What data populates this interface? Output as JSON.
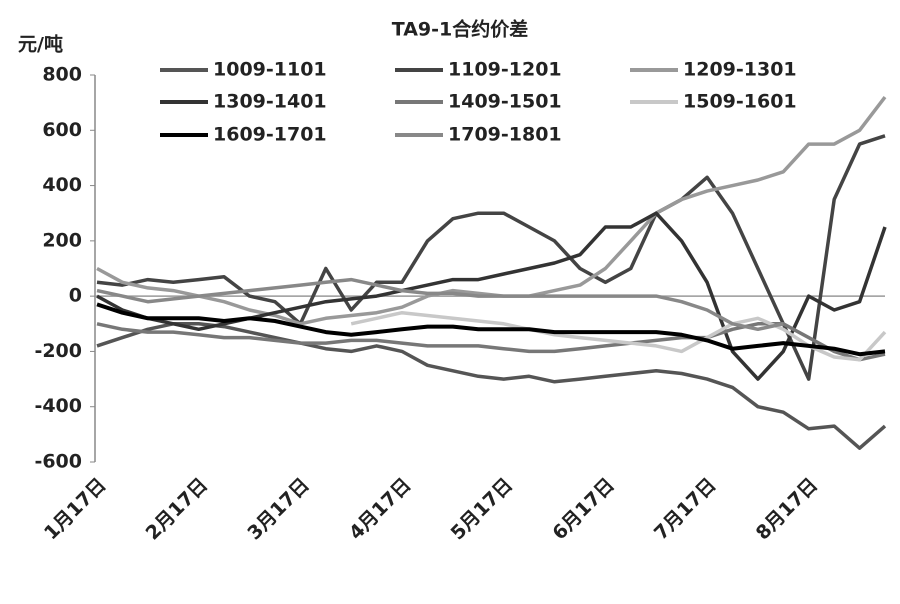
{
  "chart_data": {
    "type": "line",
    "title": "TA9-1合约价差",
    "y_label": "元/吨",
    "categories": [
      "1月17日",
      null,
      null,
      null,
      "2月17日",
      null,
      null,
      null,
      "3月17日",
      null,
      null,
      null,
      "4月17日",
      null,
      null,
      null,
      "5月17日",
      null,
      null,
      null,
      "6月17日",
      null,
      null,
      null,
      "7月17日",
      null,
      null,
      null,
      "8月17日",
      null,
      null,
      null
    ],
    "ylim": [
      -600,
      800
    ],
    "yticks": [
      -600,
      -400,
      -200,
      0,
      200,
      400,
      600,
      800
    ],
    "series": [
      {
        "name": "1009-1101",
        "color": "#555555",
        "values": [
          -180,
          -150,
          -120,
          -100,
          -100,
          -110,
          -130,
          -150,
          -170,
          -190,
          -200,
          -180,
          -200,
          -250,
          -270,
          -290,
          -300,
          -290,
          -310,
          -300,
          -290,
          -280,
          -270,
          -280,
          -300,
          -330,
          -400,
          -420,
          -480,
          -470,
          -550,
          -470
        ]
      },
      {
        "name": "1109-1201",
        "color": "#444444",
        "values": [
          50,
          40,
          60,
          50,
          60,
          70,
          0,
          -20,
          -100,
          100,
          -50,
          50,
          50,
          200,
          280,
          300,
          300,
          250,
          200,
          100,
          50,
          100,
          300,
          350,
          430,
          300,
          100,
          -100,
          -300,
          350,
          550,
          580
        ]
      },
      {
        "name": "1209-1301",
        "color": "#999999",
        "values": [
          100,
          50,
          30,
          20,
          0,
          -20,
          -50,
          -70,
          -100,
          -80,
          -70,
          -60,
          -40,
          0,
          20,
          10,
          0,
          0,
          20,
          40,
          100,
          200,
          300,
          350,
          380,
          400,
          420,
          450,
          550,
          550,
          600,
          720
        ]
      },
      {
        "name": "1309-1401",
        "color": "#333333",
        "values": [
          0,
          -50,
          -80,
          -100,
          -120,
          -100,
          -80,
          -60,
          -40,
          -20,
          -10,
          0,
          20,
          40,
          60,
          60,
          80,
          100,
          120,
          150,
          250,
          250,
          300,
          200,
          50,
          -200,
          -300,
          -200,
          0,
          -50,
          -20,
          250
        ]
      },
      {
        "name": "1409-1501",
        "color": "#777777",
        "values": [
          -100,
          -120,
          -130,
          -130,
          -140,
          -150,
          -150,
          -160,
          -170,
          -170,
          -160,
          -160,
          -170,
          -180,
          -180,
          -180,
          -190,
          -200,
          -200,
          -190,
          -180,
          -170,
          -160,
          -150,
          -150,
          -120,
          -100,
          -100,
          -150,
          -200,
          -230,
          -210
        ]
      },
      {
        "name": "1509-1601",
        "color": "#c8c8c8",
        "values": [
          null,
          null,
          null,
          null,
          null,
          null,
          null,
          null,
          null,
          null,
          -100,
          -80,
          -60,
          -70,
          -80,
          -90,
          -100,
          -120,
          -140,
          -150,
          -160,
          -170,
          -180,
          -200,
          -150,
          -100,
          -80,
          -120,
          -180,
          -220,
          -230,
          -130
        ]
      },
      {
        "name": "1609-1701",
        "color": "#000000",
        "values": [
          -30,
          -60,
          -80,
          -80,
          -80,
          -90,
          -80,
          -90,
          -110,
          -130,
          -140,
          -130,
          -120,
          -110,
          -110,
          -120,
          -120,
          -120,
          -130,
          -130,
          -130,
          -130,
          -130,
          -140,
          -160,
          -190,
          -180,
          -170,
          -180,
          -190,
          -210,
          -200
        ]
      },
      {
        "name": "1709-1801",
        "color": "#888888",
        "values": [
          20,
          0,
          -20,
          -10,
          0,
          10,
          20,
          30,
          40,
          50,
          60,
          40,
          20,
          10,
          10,
          0,
          0,
          0,
          0,
          0,
          0,
          0,
          0,
          -20,
          -50,
          -100,
          -120,
          -100,
          null,
          null,
          null,
          null
        ]
      }
    ]
  }
}
